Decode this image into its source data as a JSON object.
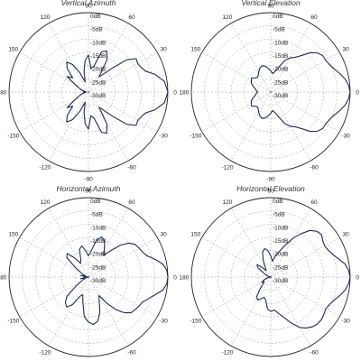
{
  "chart_data": [
    {
      "type": "polar",
      "title": "Vertical Azimuth",
      "radial_labels": [
        "0dB",
        "-5dB",
        "-10dB",
        "-15dB",
        "-20dB",
        "-25dB",
        "-30dB"
      ],
      "angle_labels": [
        {
          "deg": 90,
          "text": "90"
        },
        {
          "deg": 60,
          "text": "60"
        },
        {
          "deg": 30,
          "text": "30"
        },
        {
          "deg": 0,
          "text": "0"
        },
        {
          "deg": -30,
          "text": "-30"
        },
        {
          "deg": -60,
          "text": "-60"
        },
        {
          "deg": -90,
          "text": "-90"
        },
        {
          "deg": -120,
          "text": "-120"
        },
        {
          "deg": -150,
          "text": "-150"
        },
        {
          "deg": 180,
          "text": "180"
        },
        {
          "deg": 150,
          "text": "150"
        },
        {
          "deg": 120,
          "text": "120"
        }
      ],
      "r_range_db": [
        -30,
        0
      ],
      "series_color": "#1f2a5c",
      "series": [
        {
          "angles": [
            0,
            8,
            15,
            20,
            25,
            30,
            35,
            40,
            45,
            50,
            55,
            60,
            66,
            72,
            78,
            84,
            90,
            96,
            102,
            108,
            114,
            120,
            126,
            132,
            138,
            144,
            150,
            156,
            162,
            168,
            174,
            180,
            186,
            192,
            198,
            204,
            210,
            216,
            222,
            228,
            234,
            240,
            246,
            252,
            258,
            264,
            270,
            276,
            282,
            288,
            294,
            300,
            305,
            310,
            315,
            320,
            325,
            330,
            335,
            340,
            345,
            352
          ],
          "values": [
            0,
            -1,
            -4,
            -7,
            -8,
            -8.5,
            -8,
            -11,
            -17,
            -21,
            -23,
            -16,
            -13,
            -14,
            -20,
            -21,
            -16,
            -18,
            -22,
            -26,
            -22,
            -18,
            -16,
            -18,
            -22,
            -20,
            -24,
            -26,
            -27,
            -28,
            -29,
            -28,
            -29,
            -28,
            -27,
            -26,
            -24,
            -20,
            -22,
            -18,
            -16,
            -18,
            -22,
            -26,
            -22,
            -18,
            -16,
            -21,
            -20,
            -14,
            -13,
            -16,
            -23,
            -21,
            -17,
            -11,
            -8,
            -8.5,
            -8,
            -7,
            -4,
            -1
          ]
        }
      ]
    },
    {
      "type": "polar",
      "title": "Vertical Elevation",
      "radial_labels": [
        "0dB",
        "-5dB",
        "-10dB",
        "-15dB",
        "-20dB",
        "-25dB",
        "-30dB"
      ],
      "angle_labels": [
        {
          "deg": 90,
          "text": "90"
        },
        {
          "deg": 60,
          "text": "60"
        },
        {
          "deg": 30,
          "text": "30"
        },
        {
          "deg": 0,
          "text": "0"
        },
        {
          "deg": -30,
          "text": "-30"
        },
        {
          "deg": -60,
          "text": "-60"
        },
        {
          "deg": -90,
          "text": "-90"
        },
        {
          "deg": -120,
          "text": "-120"
        },
        {
          "deg": -150,
          "text": "-150"
        },
        {
          "deg": 180,
          "text": "180"
        },
        {
          "deg": 150,
          "text": "150"
        },
        {
          "deg": 120,
          "text": "120"
        }
      ],
      "r_range_db": [
        -30,
        0
      ],
      "series_color": "#1f2a5c",
      "series": [
        {
          "angles": [
            0,
            5,
            10,
            15,
            20,
            25,
            30,
            35,
            40,
            45,
            50,
            55,
            60,
            66,
            72,
            78,
            84,
            90,
            96,
            102,
            108,
            114,
            120,
            126,
            132,
            138,
            144,
            150,
            156,
            162,
            168,
            174,
            180,
            186,
            192,
            198,
            204,
            210,
            216,
            222,
            228,
            234,
            240,
            246,
            252,
            258,
            264,
            270,
            276,
            282,
            288,
            294,
            300,
            305,
            310,
            315,
            320,
            325,
            330,
            335,
            340,
            345,
            350,
            355
          ],
          "values": [
            0,
            -0.5,
            -1.5,
            -3,
            -4.5,
            -5.5,
            -6,
            -6,
            -7,
            -9,
            -12,
            -14,
            -15,
            -17,
            -20,
            -22,
            -23,
            -22,
            -21,
            -20,
            -19.5,
            -20,
            -21,
            -22,
            -22.5,
            -22,
            -21,
            -21.5,
            -22,
            -23,
            -24,
            -24.5,
            -25,
            -24.5,
            -24,
            -23,
            -22,
            -21.5,
            -21,
            -22,
            -22.5,
            -22,
            -21,
            -20,
            -19.5,
            -20,
            -21,
            -22,
            -23,
            -22,
            -20,
            -17,
            -15,
            -14,
            -12,
            -9,
            -7,
            -6,
            -6,
            -5.5,
            -4.5,
            -3,
            -1.5,
            -0.5
          ]
        }
      ]
    },
    {
      "type": "polar",
      "title": "Horizontal Azimuth",
      "radial_labels": [
        "0dB",
        "-5dB",
        "-10dB",
        "-15dB",
        "-20dB",
        "-25dB",
        "-30dB"
      ],
      "angle_labels": [
        {
          "deg": 90,
          "text": "90"
        },
        {
          "deg": 60,
          "text": "60"
        },
        {
          "deg": 30,
          "text": "30"
        },
        {
          "deg": 0,
          "text": "0"
        },
        {
          "deg": -30,
          "text": "-30"
        },
        {
          "deg": -60,
          "text": "-60"
        },
        {
          "deg": -90,
          "text": "-90"
        },
        {
          "deg": -120,
          "text": "-120"
        },
        {
          "deg": -150,
          "text": "-150"
        },
        {
          "deg": 180,
          "text": "180"
        },
        {
          "deg": 150,
          "text": "150"
        },
        {
          "deg": 120,
          "text": "120"
        }
      ],
      "r_range_db": [
        -30,
        0
      ],
      "series_color": "#1f2a5c",
      "series": [
        {
          "angles": [
            0,
            5,
            10,
            15,
            20,
            25,
            30,
            35,
            40,
            45,
            50,
            55,
            60,
            66,
            72,
            78,
            84,
            90,
            96,
            102,
            108,
            114,
            120,
            126,
            132,
            138,
            144,
            150,
            156,
            162,
            168,
            174,
            180,
            186,
            192,
            198,
            204,
            210,
            216,
            222,
            228,
            234,
            240,
            246,
            252,
            258,
            264,
            270,
            276,
            282,
            288,
            294,
            300,
            305,
            310,
            315,
            320,
            325,
            330,
            335,
            340,
            345,
            350,
            355
          ],
          "values": [
            0,
            -0.3,
            -1.5,
            -4,
            -6.5,
            -7.5,
            -8,
            -8.5,
            -10,
            -13,
            -17,
            -20,
            -18,
            -15,
            -14,
            -16,
            -20,
            -22,
            -20,
            -18,
            -19,
            -23,
            -24,
            -21,
            -18,
            -19,
            -24,
            -27,
            -28,
            -29,
            -27,
            -29,
            -30,
            -29,
            -27,
            -29,
            -28,
            -27,
            -24,
            -19,
            -17,
            -16,
            -18,
            -22,
            -23,
            -20,
            -15,
            -13,
            -12,
            -13,
            -16,
            -20,
            -22,
            -18,
            -14,
            -11,
            -9,
            -8.5,
            -8,
            -7.5,
            -6,
            -4,
            -1.5,
            -0.3
          ]
        }
      ]
    },
    {
      "type": "polar",
      "title": "Horizontal Elevation",
      "radial_labels": [
        "0dB",
        "-5dB",
        "-10dB",
        "-15dB",
        "-20dB",
        "-25dB",
        "-30dB"
      ],
      "angle_labels": [
        {
          "deg": 90,
          "text": "90"
        },
        {
          "deg": 60,
          "text": "60"
        },
        {
          "deg": 30,
          "text": "30"
        },
        {
          "deg": 0,
          "text": "0"
        },
        {
          "deg": -30,
          "text": "-30"
        },
        {
          "deg": -60,
          "text": "-60"
        },
        {
          "deg": -90,
          "text": "-90"
        },
        {
          "deg": -120,
          "text": "-120"
        },
        {
          "deg": -150,
          "text": "-150"
        },
        {
          "deg": 180,
          "text": "180"
        },
        {
          "deg": 150,
          "text": "150"
        },
        {
          "deg": 120,
          "text": "120"
        }
      ],
      "r_range_db": [
        -30,
        0
      ],
      "series_color": "#1f2a5c",
      "series": [
        {
          "angles": [
            0,
            5,
            10,
            15,
            20,
            25,
            30,
            35,
            40,
            45,
            50,
            55,
            60,
            66,
            72,
            78,
            84,
            90,
            96,
            102,
            108,
            114,
            120,
            126,
            132,
            138,
            144,
            150,
            156,
            162,
            168,
            174,
            180,
            186,
            192,
            198,
            204,
            210,
            216,
            222,
            228,
            234,
            240,
            246,
            252,
            258,
            264,
            270,
            276,
            282,
            288,
            294,
            300,
            305,
            310,
            315,
            320,
            325,
            330,
            335,
            340,
            345,
            350,
            355
          ],
          "values": [
            0,
            -0.5,
            -1.5,
            -3.5,
            -5,
            -6,
            -6.5,
            -6,
            -5,
            -5.5,
            -7,
            -10,
            -13,
            -17,
            -20,
            -22,
            -24,
            -22,
            -20,
            -19,
            -20,
            -23,
            -26,
            -27,
            -25,
            -23,
            -24,
            -27,
            -28,
            -29,
            -30,
            -29.5,
            -30,
            -29.5,
            -29,
            -28,
            -27,
            -26,
            -27,
            -26,
            -24,
            -21,
            -20,
            -21,
            -22,
            -21,
            -18,
            -17,
            -17.5,
            -16,
            -14,
            -11,
            -8,
            -6.5,
            -5.5,
            -5,
            -5,
            -5.5,
            -6,
            -5.5,
            -4.5,
            -3,
            -1.5,
            -0.5
          ]
        }
      ]
    }
  ]
}
